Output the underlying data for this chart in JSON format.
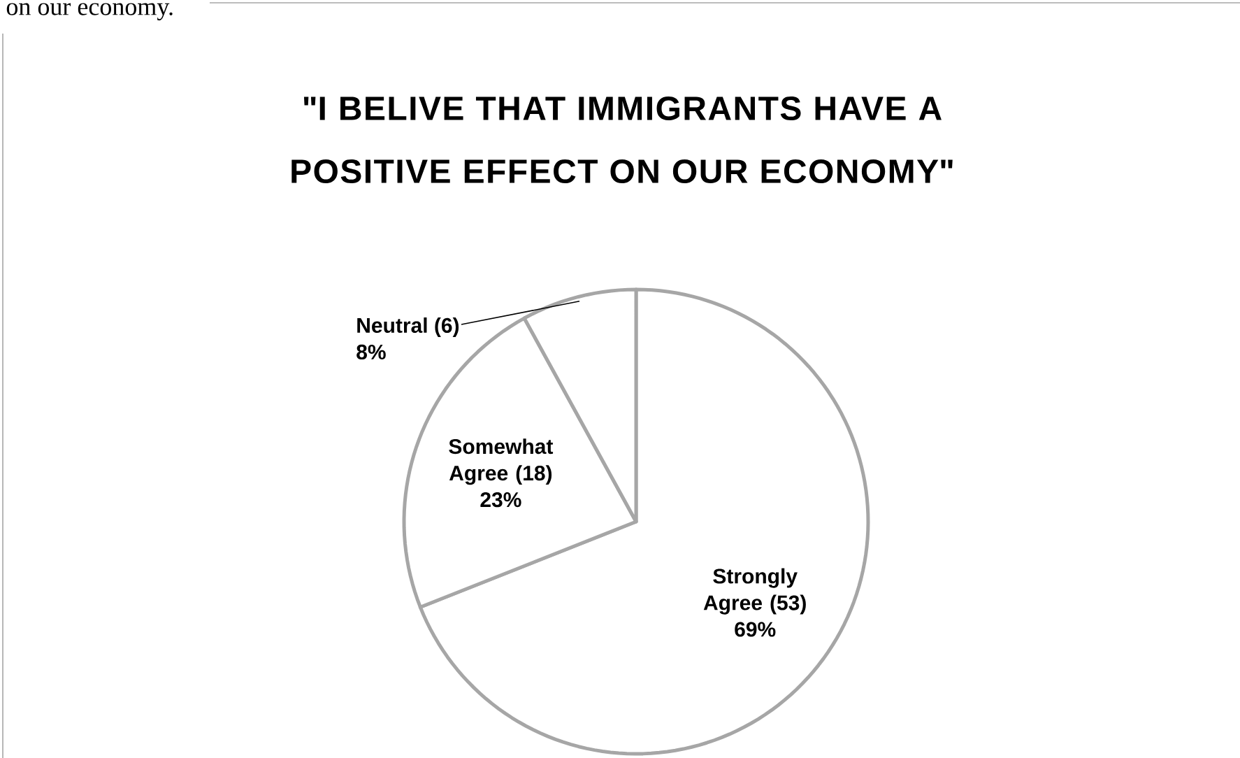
{
  "chart_data": {
    "type": "pie",
    "title": "\"I BELIVE THAT IMMIGRANTS HAVE A POSITIVE EFFECT ON OUR ECONOMY\"",
    "annotations": [
      "on our economy."
    ],
    "categories": [
      "Strongly Agree (53)",
      "Somewhat Agree (18)",
      "Neutral (6)"
    ],
    "values": [
      69,
      23,
      8
    ],
    "value_labels": [
      "69%",
      "23%",
      "8%"
    ],
    "colors": [
      "#ffffff",
      "#ffffff",
      "#ffffff"
    ]
  }
}
